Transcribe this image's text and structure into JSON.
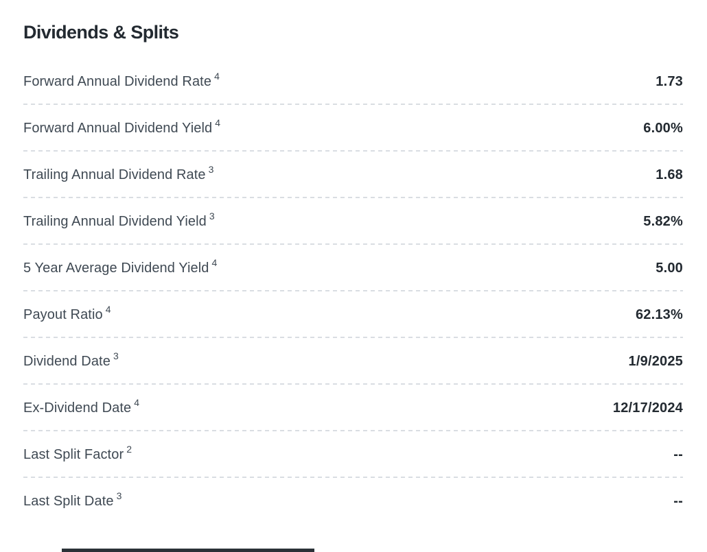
{
  "section": {
    "title": "Dividends & Splits"
  },
  "table": {
    "rows": [
      {
        "label": "Forward Annual Dividend Rate",
        "footnote": "4",
        "value": "1.73"
      },
      {
        "label": "Forward Annual Dividend Yield",
        "footnote": "4",
        "value": "6.00%"
      },
      {
        "label": "Trailing Annual Dividend Rate",
        "footnote": "3",
        "value": "1.68"
      },
      {
        "label": "Trailing Annual Dividend Yield",
        "footnote": "3",
        "value": "5.82%"
      },
      {
        "label": "5 Year Average Dividend Yield",
        "footnote": "4",
        "value": "5.00"
      },
      {
        "label": "Payout Ratio",
        "footnote": "4",
        "value": "62.13%"
      },
      {
        "label": "Dividend Date",
        "footnote": "3",
        "value": "1/9/2025"
      },
      {
        "label": "Ex-Dividend Date",
        "footnote": "4",
        "value": "12/17/2024"
      },
      {
        "label": "Last Split Factor",
        "footnote": "2",
        "value": "--"
      },
      {
        "label": "Last Split Date",
        "footnote": "3",
        "value": "--"
      }
    ]
  },
  "colors": {
    "title_text": "#232a31",
    "label_text": "#3f4953",
    "value_text": "#232a31",
    "divider": "#d9dde2",
    "background": "#ffffff",
    "clipped_heading_bar": "#2b3137"
  }
}
